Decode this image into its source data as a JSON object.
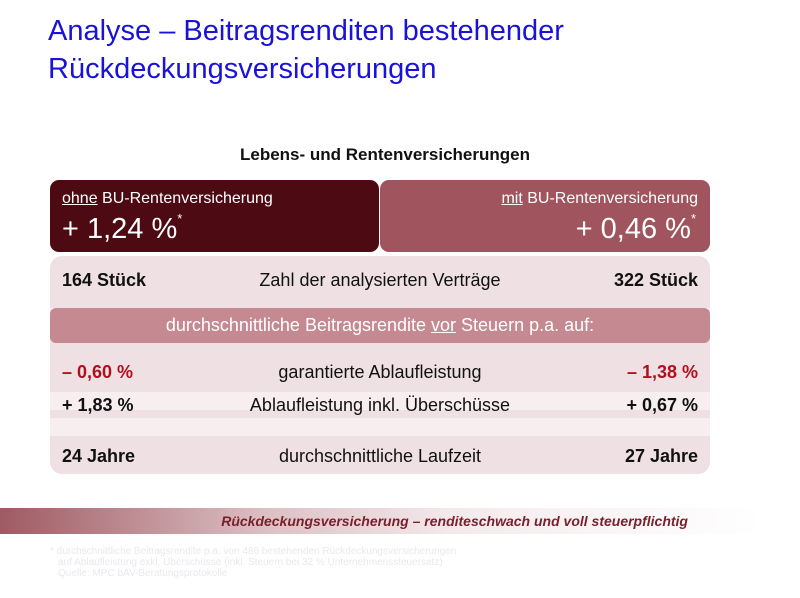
{
  "title": "Analyse – Beitragsrenditen bestehender Rückdeckungsversicherungen",
  "subtitle": "Lebens- und Rentenversicherungen",
  "left_box": {
    "label_prefix": "ohne",
    "label_rest": " BU-Rentenversicherung",
    "value": "+ 1,24 %",
    "mark": "*"
  },
  "right_box": {
    "label_prefix": "mit",
    "label_rest": " BU-Rentenversicherung",
    "value": "+ 0,46 %",
    "mark": "*"
  },
  "rows": {
    "count": {
      "left": "164 Stück",
      "center": "Zahl der analysierten Verträge",
      "right": "322 Stück"
    },
    "guaranteed": {
      "left": "– 0,60 %",
      "center": "garantierte Ablaufleistung",
      "right": "– 1,38 %"
    },
    "surplus": {
      "left": "+ 1,83 %",
      "center": "Ablaufleistung inkl. Überschüsse",
      "right": "+ 0,67 %"
    },
    "duration": {
      "left": "24 Jahre",
      "center": "durchschnittliche Laufzeit",
      "right": "27 Jahre"
    }
  },
  "band": {
    "pre": "durchschnittliche Beitragsrendite ",
    "underlined": "vor",
    "post": " Steuern p.a. auf:"
  },
  "conclusion": "Rückdeckungsversicherung – renditeschwach und voll steuerpflichtig",
  "footnote": [
    "* durchschnittliche Beitragsrendite p.a. von 486 bestehenden Rückdeckungsversicherungen",
    "auf Ablaufleistung exkl. Überschüsse (inkl. Steuern bei 32 % Unternehmenssteuersatz)",
    "Quelle: MPC bAV-Beratungsprotokolle"
  ]
}
